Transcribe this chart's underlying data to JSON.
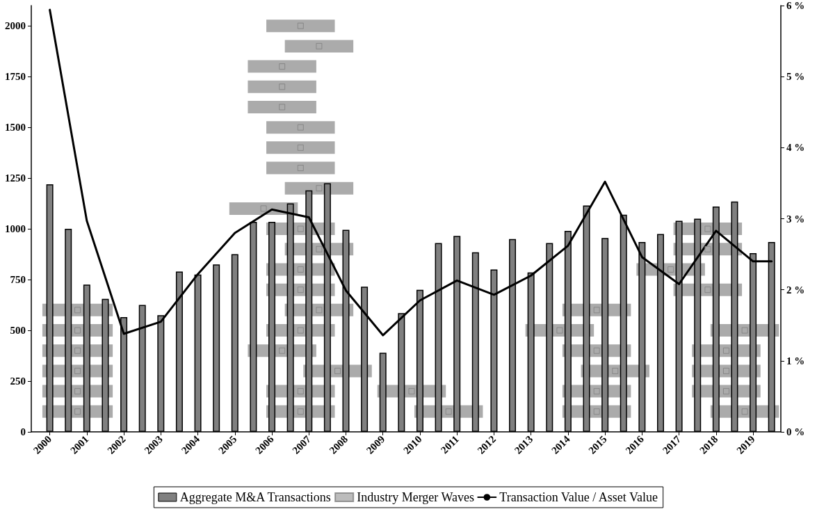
{
  "chart_data": {
    "type": "bar",
    "xlim": [
      1999.5,
      2019.75
    ],
    "xticks": [
      2000,
      2001,
      2002,
      2003,
      2004,
      2005,
      2006,
      2007,
      2008,
      2009,
      2010,
      2011,
      2012,
      2013,
      2014,
      2015,
      2016,
      2017,
      2018,
      2019
    ],
    "ylim": [
      0,
      2100
    ],
    "yticks": [
      0,
      250,
      500,
      750,
      1000,
      1250,
      1500,
      1750,
      2000
    ],
    "y2lim": [
      0,
      6
    ],
    "y2ticks": [
      {
        "value": 0,
        "label": "0 %"
      },
      {
        "value": 1,
        "label": "1 %"
      },
      {
        "value": 2,
        "label": "2 %"
      },
      {
        "value": 3,
        "label": "3 %"
      },
      {
        "value": 4,
        "label": "4 %"
      },
      {
        "value": 5,
        "label": "5 %"
      },
      {
        "value": 6,
        "label": "6 %"
      }
    ],
    "legend": "bottom",
    "marker": "none",
    "line_style": "solid",
    "series": [
      {
        "name": "Aggregate M&A Transactions",
        "color": "#808080",
        "x": [
          2000,
          2000.5,
          2001,
          2001.5,
          2002,
          2002.5,
          2003,
          2003.5,
          2004,
          2004.5,
          2005,
          2005.5,
          2006,
          2006.5,
          2007,
          2007.5,
          2008,
          2008.5,
          2009,
          2009.5,
          2010,
          2010.5,
          2011,
          2011.5,
          2012,
          2012.5,
          2013,
          2013.5,
          2014,
          2014.5,
          2015,
          2015.5,
          2016,
          2016.5,
          2017,
          2017.5,
          2018,
          2018.5,
          2019,
          2019.5
        ],
        "values": [
          1220,
          1000,
          725,
          655,
          565,
          625,
          575,
          790,
          775,
          825,
          875,
          1035,
          1035,
          1125,
          1190,
          1225,
          995,
          715,
          390,
          585,
          700,
          930,
          965,
          885,
          800,
          950,
          785,
          930,
          990,
          1115,
          955,
          1070,
          935,
          975,
          1040,
          1050,
          1110,
          1135,
          880,
          935
        ]
      },
      {
        "name": "Industry Merger Waves",
        "type": "scatter",
        "marker": "square",
        "color": "#ababab",
        "x": [
          2000.75,
          2000.75,
          2000.75,
          2000.75,
          2000.75,
          2000.75,
          2006.775,
          2007.275,
          2006.275,
          2006.275,
          2006.275,
          2006.775,
          2006.775,
          2006.775,
          2007.275,
          2005.775,
          2006.775,
          2007.275,
          2006.775,
          2006.775,
          2007.275,
          2006.775,
          2006.275,
          2007.775,
          2006.775,
          2006.775,
          2009.775,
          2010.775,
          2014.775,
          2013.775,
          2014.775,
          2015.275,
          2014.775,
          2014.775,
          2017.775,
          2017.775,
          2016.775,
          2017.775,
          2018.775,
          2018.275,
          2018.275,
          2018.275,
          2018.775
        ],
        "values": [
          100,
          200,
          300,
          400,
          500,
          600,
          2000,
          1900,
          1800,
          1700,
          1600,
          1500,
          1400,
          1300,
          1200,
          1100,
          1000,
          900,
          800,
          700,
          600,
          500,
          400,
          300,
          200,
          100,
          200,
          100,
          600,
          500,
          400,
          300,
          200,
          100,
          1000,
          900,
          800,
          700,
          500,
          400,
          300,
          200,
          100
        ],
        "xerrors": [
          [
            1999.8,
            2001.7
          ],
          [
            1999.8,
            2001.7
          ],
          [
            1999.8,
            2001.7
          ],
          [
            1999.8,
            2001.7
          ],
          [
            1999.8,
            2001.7
          ],
          [
            1999.8,
            2001.7
          ],
          [
            2005.85,
            2007.7
          ],
          [
            2006.35,
            2008.2
          ],
          [
            2005.35,
            2007.2
          ],
          [
            2005.35,
            2007.2
          ],
          [
            2005.35,
            2007.2
          ],
          [
            2005.85,
            2007.7
          ],
          [
            2005.85,
            2007.7
          ],
          [
            2005.85,
            2007.7
          ],
          [
            2006.35,
            2008.2
          ],
          [
            2004.85,
            2006.7
          ],
          [
            2005.85,
            2007.7
          ],
          [
            2006.35,
            2008.2
          ],
          [
            2005.85,
            2007.7
          ],
          [
            2005.85,
            2007.7
          ],
          [
            2006.35,
            2008.2
          ],
          [
            2005.85,
            2007.7
          ],
          [
            2005.35,
            2007.2
          ],
          [
            2006.85,
            2008.7
          ],
          [
            2005.85,
            2007.7
          ],
          [
            2005.85,
            2007.7
          ],
          [
            2008.85,
            2010.7
          ],
          [
            2009.85,
            2011.7
          ],
          [
            2013.85,
            2015.7
          ],
          [
            2012.85,
            2014.7
          ],
          [
            2013.85,
            2015.7
          ],
          [
            2014.35,
            2016.2
          ],
          [
            2013.85,
            2015.7
          ],
          [
            2013.85,
            2015.7
          ],
          [
            2016.85,
            2018.7
          ],
          [
            2016.85,
            2018.7
          ],
          [
            2015.85,
            2017.7
          ],
          [
            2016.85,
            2018.7
          ],
          [
            2017.85,
            2019.7
          ],
          [
            2017.35,
            2019.2
          ],
          [
            2017.35,
            2019.2
          ],
          [
            2017.35,
            2019.2
          ],
          [
            2017.85,
            2019.7
          ]
        ]
      },
      {
        "name": "Transaction Value / Asset Value",
        "type": "line",
        "axis": "y2",
        "color": "#000000",
        "x": [
          2000,
          2001,
          2002,
          2003,
          2004,
          2005,
          2006,
          2007,
          2008,
          2009,
          2010,
          2011,
          2012,
          2013,
          2014,
          2015,
          2016,
          2017,
          2018,
          2019,
          2019.5
        ],
        "values": [
          5.94,
          2.97,
          1.38,
          1.55,
          2.22,
          2.8,
          3.13,
          3.02,
          1.99,
          1.36,
          1.85,
          2.13,
          1.93,
          2.2,
          2.62,
          3.52,
          2.46,
          2.08,
          2.83,
          2.4,
          2.4
        ]
      }
    ]
  }
}
